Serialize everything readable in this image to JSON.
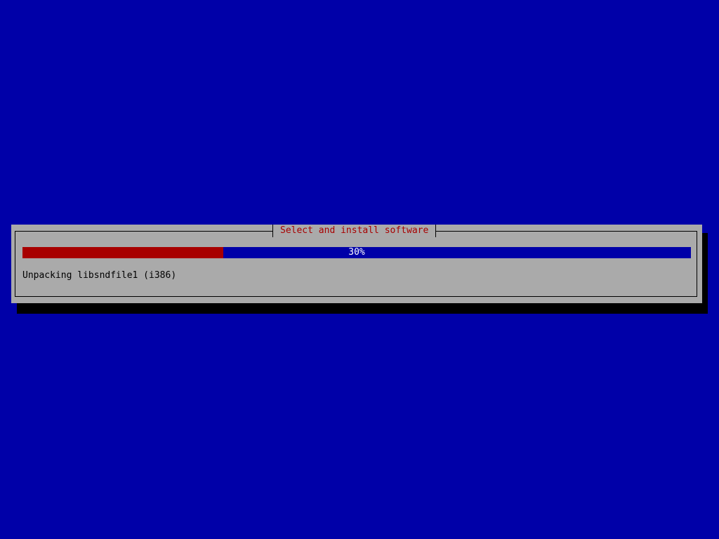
{
  "dialog": {
    "title": "Select and install software",
    "progress_percent": 30,
    "progress_label": "30%",
    "status_text": "Unpacking libsndfile1 (i386)"
  },
  "colors": {
    "background": "#0000a8",
    "dialog": "#aaaaaa",
    "progress_fill": "#a80000",
    "title_text": "#a80000"
  }
}
